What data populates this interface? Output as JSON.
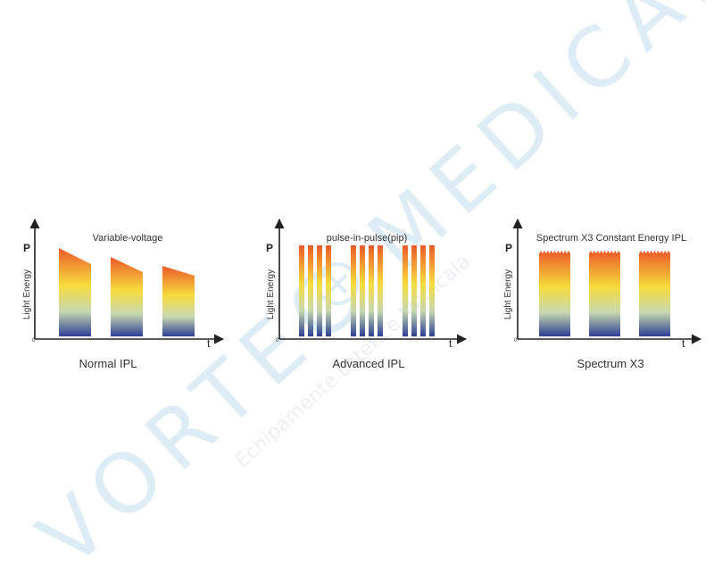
{
  "watermark": {
    "main": "VORTEC MEDICAL",
    "sub": "Echipamente Estetice Medicala",
    "color": "#dbeaf6"
  },
  "colors": {
    "axis": "#222222",
    "gradient_top": "#ec5a2a",
    "gradient_mid": "#f8dc3c",
    "gradient_low": "#c7d8b0",
    "gradient_bottom": "#2d3f94"
  },
  "panels": [
    {
      "title": "Variable-voltage",
      "caption": "Normal IPL",
      "y_symbol": "P",
      "y_label": "Light Energy",
      "x_symbol": "t",
      "origin": "0",
      "pulse_type": "decaying",
      "pulses": 3
    },
    {
      "title": "pulse-in-pulse(pip)",
      "caption": "Advanced IPL",
      "y_symbol": "P",
      "y_label": "Light Energy",
      "x_symbol": "t",
      "origin": "0",
      "pulse_type": "sub-pulses",
      "pulses": 3,
      "sub_pulses_per_pulse": 4
    },
    {
      "title": "Spectrum X3 Constant Energy IPL",
      "caption": "Spectrum X3",
      "y_symbol": "P",
      "y_label": "Light Energy",
      "x_symbol": "t",
      "origin": "0",
      "pulse_type": "constant",
      "pulses": 3
    }
  ]
}
